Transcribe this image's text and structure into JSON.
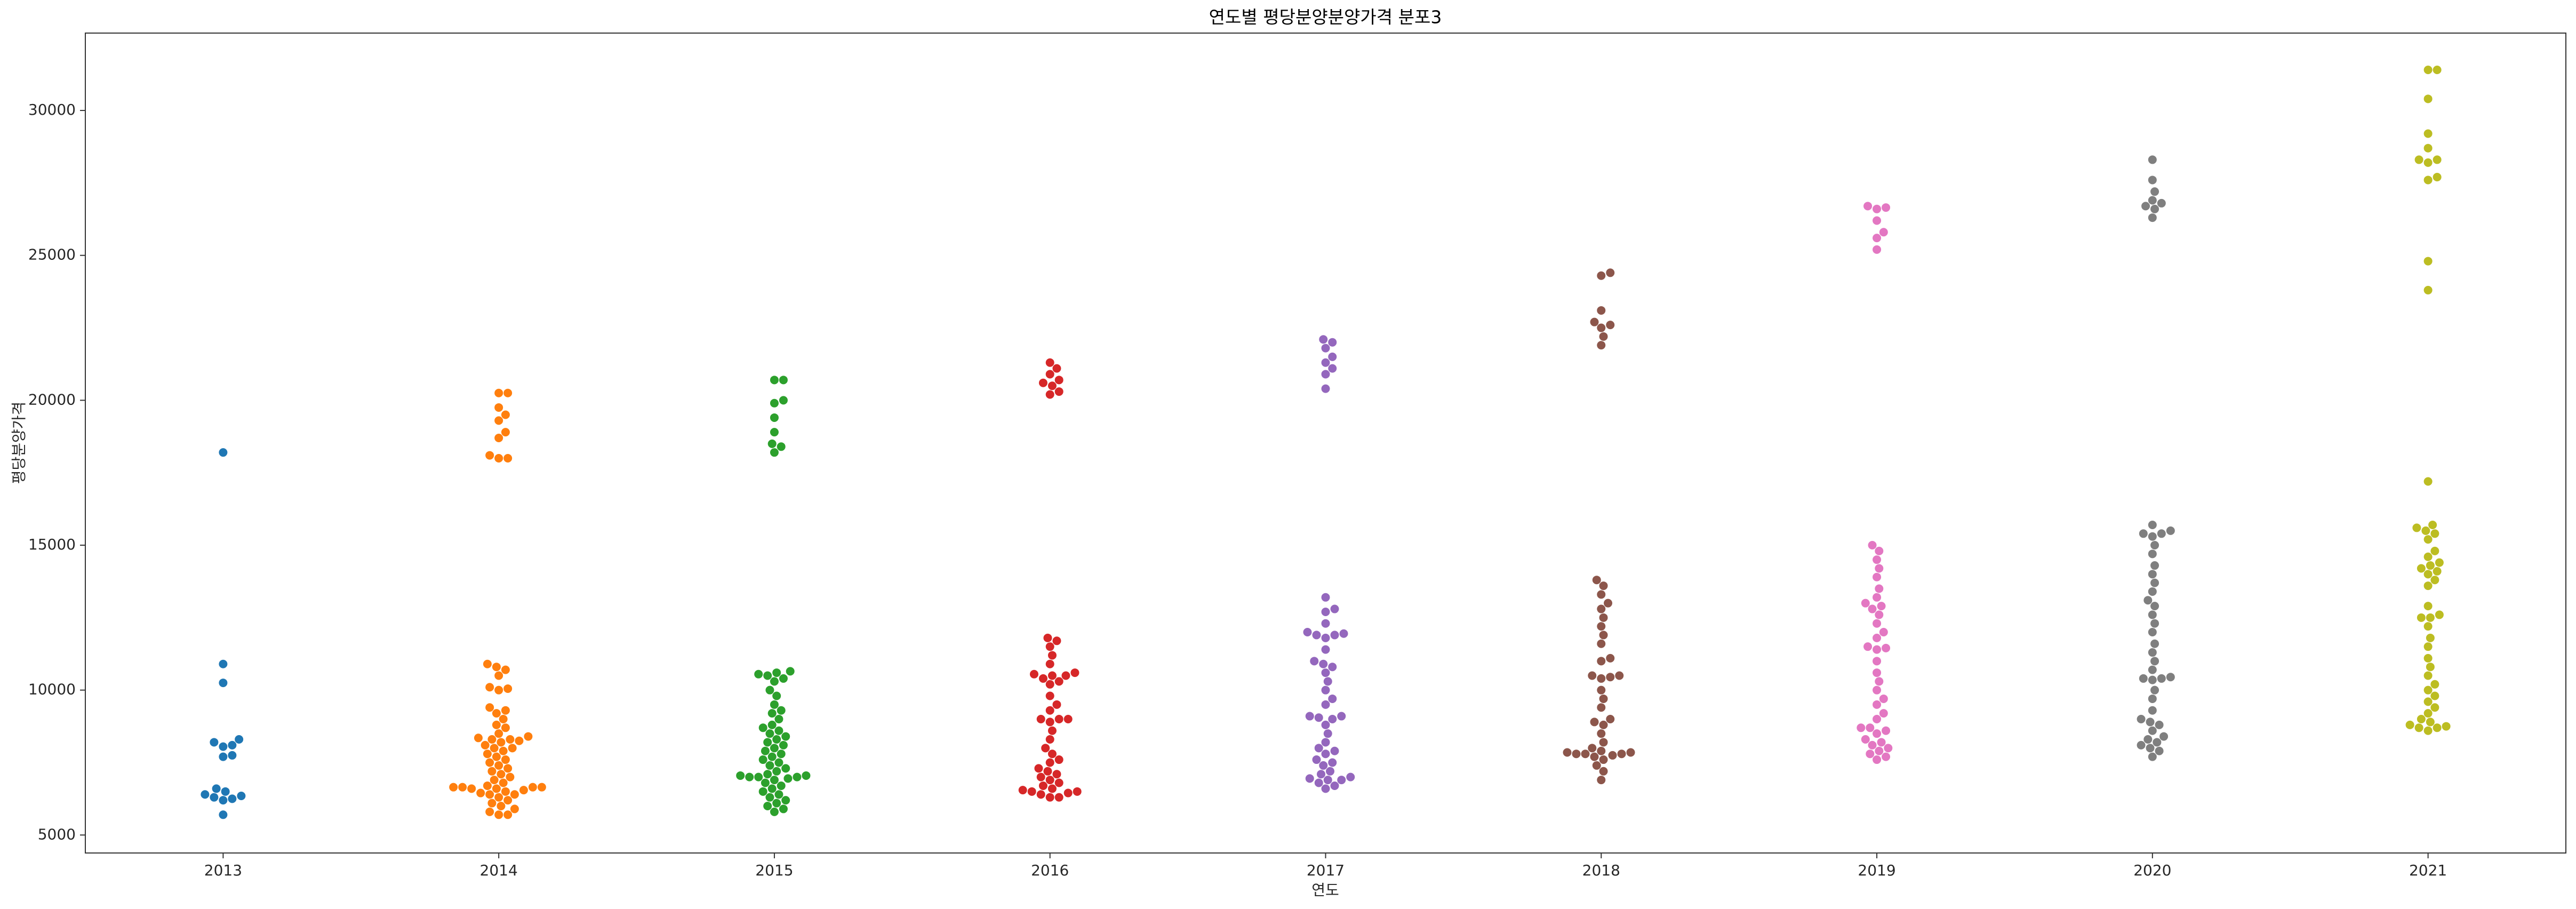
{
  "chart_data": {
    "type": "swarm",
    "title": "연도별 평당분양분양가격 분포3",
    "xlabel": "연도",
    "ylabel": "평당분양가격",
    "categories": [
      "2013",
      "2014",
      "2015",
      "2016",
      "2017",
      "2018",
      "2019",
      "2020",
      "2021"
    ],
    "colors": [
      "#1f77b4",
      "#ff7f0e",
      "#2ca02c",
      "#d62728",
      "#9467bd",
      "#8c564b",
      "#e377c2",
      "#7f7f7f",
      "#bcbd22"
    ],
    "values": [
      [
        18200,
        10900,
        10250,
        8300,
        8200,
        8100,
        8050,
        7750,
        7700,
        6600,
        6500,
        6400,
        6350,
        6300,
        6250,
        6200,
        5700
      ],
      [
        20250,
        20250,
        19750,
        19500,
        19300,
        18900,
        18700,
        18100,
        18000,
        18000,
        10900,
        10800,
        10700,
        10500,
        10100,
        10050,
        10000,
        9400,
        9300,
        9200,
        9000,
        8800,
        8700,
        8500,
        8400,
        8350,
        8300,
        8300,
        8250,
        8200,
        8100,
        8000,
        8000,
        7900,
        7800,
        7700,
        7600,
        7500,
        7400,
        7300,
        7200,
        7100,
        7000,
        6900,
        6800,
        6700,
        6650,
        6650,
        6650,
        6650,
        6600,
        6600,
        6550,
        6500,
        6450,
        6400,
        6400,
        6300,
        6200,
        6100,
        6000,
        5900,
        5800,
        5700,
        5700
      ],
      [
        20700,
        20700,
        20000,
        19900,
        19400,
        18900,
        18500,
        18400,
        18200,
        10650,
        10600,
        10550,
        10500,
        10400,
        10300,
        10000,
        9800,
        9500,
        9300,
        9200,
        9000,
        8800,
        8700,
        8600,
        8500,
        8400,
        8300,
        8200,
        8100,
        8000,
        7900,
        7800,
        7700,
        7600,
        7500,
        7400,
        7300,
        7200,
        7100,
        7050,
        7050,
        7000,
        7000,
        7000,
        6950,
        6900,
        6800,
        6700,
        6600,
        6500,
        6400,
        6300,
        6200,
        6100,
        6000,
        5900,
        5800
      ],
      [
        21300,
        21100,
        20900,
        20700,
        20600,
        20500,
        20300,
        20200,
        11800,
        11700,
        11500,
        11200,
        10900,
        10600,
        10550,
        10500,
        10500,
        10400,
        10300,
        10200,
        9800,
        9500,
        9300,
        9000,
        9000,
        9000,
        8900,
        8600,
        8300,
        8000,
        7800,
        7600,
        7500,
        7300,
        7200,
        7100,
        7000,
        6900,
        6800,
        6700,
        6600,
        6550,
        6500,
        6500,
        6450,
        6400,
        6300,
        6300
      ],
      [
        22100,
        22000,
        21800,
        21500,
        21300,
        21100,
        20900,
        20400,
        13200,
        12800,
        12700,
        12300,
        12000,
        11950,
        11900,
        11900,
        11800,
        11400,
        11000,
        10900,
        10800,
        10600,
        10300,
        10000,
        9700,
        9500,
        9100,
        9100,
        9050,
        9000,
        8800,
        8500,
        8200,
        8000,
        7900,
        7800,
        7600,
        7500,
        7400,
        7200,
        7100,
        7000,
        6950,
        6900,
        6900,
        6800,
        6700,
        6600
      ],
      [
        24400,
        24300,
        23100,
        22700,
        22600,
        22500,
        22200,
        21900,
        13800,
        13600,
        13300,
        13000,
        12800,
        12500,
        12200,
        11900,
        11600,
        11100,
        11000,
        10500,
        10500,
        10450,
        10400,
        10000,
        9700,
        9400,
        9000,
        8900,
        8800,
        8500,
        8200,
        8000,
        7900,
        7850,
        7850,
        7800,
        7800,
        7800,
        7750,
        7700,
        7600,
        7400,
        7200,
        6900
      ],
      [
        26700,
        26650,
        26600,
        26200,
        25800,
        25600,
        25200,
        15000,
        14800,
        14500,
        14200,
        13900,
        13500,
        13200,
        13000,
        12900,
        12800,
        12600,
        12300,
        12000,
        11800,
        11500,
        11450,
        11400,
        11000,
        10600,
        10300,
        10000,
        9700,
        9500,
        9200,
        9000,
        8700,
        8700,
        8600,
        8500,
        8300,
        8200,
        8100,
        8000,
        7900,
        7800,
        7700,
        7600
      ],
      [
        28300,
        27600,
        27200,
        26900,
        26800,
        26700,
        26600,
        26300,
        15700,
        15500,
        15400,
        15400,
        15300,
        15000,
        14700,
        14300,
        14000,
        13700,
        13400,
        13100,
        12900,
        12600,
        12300,
        12000,
        11600,
        11300,
        11000,
        10700,
        10450,
        10400,
        10400,
        10350,
        10000,
        9700,
        9300,
        9000,
        8900,
        8800,
        8600,
        8400,
        8300,
        8200,
        8100,
        8000,
        7900,
        7700
      ],
      [
        31400,
        31400,
        30400,
        29200,
        28700,
        28300,
        28300,
        28200,
        27700,
        27600,
        24800,
        23800,
        17200,
        15700,
        15600,
        15500,
        15400,
        15200,
        14800,
        14600,
        14400,
        14300,
        14200,
        14100,
        14000,
        13800,
        13600,
        12900,
        12600,
        12500,
        12500,
        12200,
        11800,
        11500,
        11100,
        10800,
        10500,
        10200,
        10000,
        9800,
        9600,
        9400,
        9200,
        9000,
        8900,
        8800,
        8750,
        8700,
        8700,
        8600
      ]
    ],
    "ylim": [
      4380,
      32670
    ],
    "yticks": [
      5000,
      10000,
      15000,
      20000,
      25000,
      30000
    ],
    "grid": false
  }
}
